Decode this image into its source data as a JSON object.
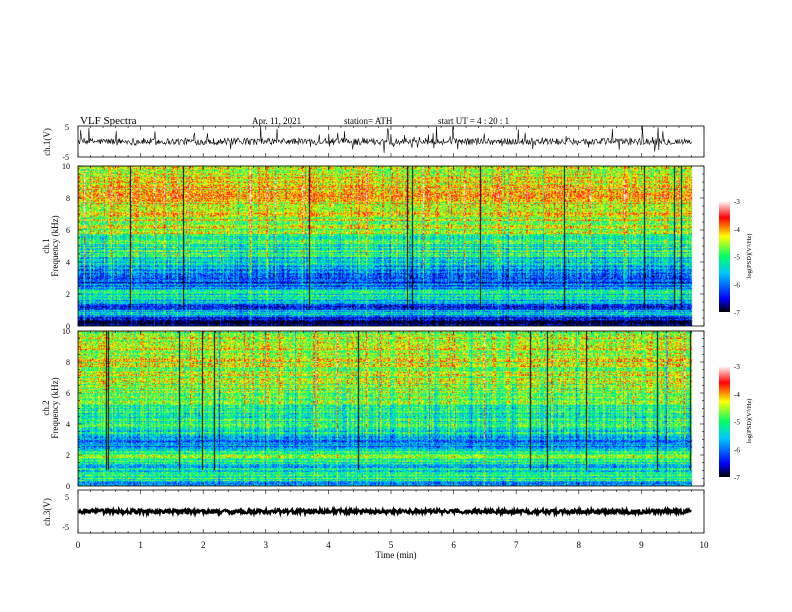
{
  "header": {
    "title": "VLF  Spectra",
    "date": "Apr. 11, 2021",
    "station": "station= ATH",
    "start": "start  UT  =   4  : 20 : 1"
  },
  "chart_data": [
    {
      "type": "line",
      "panel": "ch1-waveform",
      "ylabel": "ch.1(V)",
      "ylim": [
        -5,
        5
      ],
      "yticks": [
        "5",
        "-5"
      ],
      "xlim": [
        0,
        10
      ],
      "signal": {
        "baseline_v": 0.0,
        "noise_amplitude_v": 2.0,
        "spike_amplitude_v": 4.5,
        "duration_min": 9.8
      }
    },
    {
      "type": "heatmap",
      "panel": "ch1-spectrogram",
      "ylabel": "ch.1\nFrequency  (kHz)",
      "ylabel_lines": [
        "ch.1",
        "Frequency  (kHz)"
      ],
      "ylim": [
        0,
        10
      ],
      "yticks": [
        "0",
        "2",
        "4",
        "6",
        "8",
        "10"
      ],
      "xlim": [
        0,
        10
      ],
      "duration_min": 9.8,
      "colorbar": {
        "label": "log(PSD)(V²/Hz)",
        "range": [
          -7,
          -3
        ],
        "ticks": [
          "-3",
          "-4",
          "-5",
          "-6",
          "-7"
        ]
      },
      "profile_log_psd": [
        {
          "f_khz": 0.0,
          "v": -7.0
        },
        {
          "f_khz": 0.4,
          "v": -6.6
        },
        {
          "f_khz": 0.8,
          "v": -5.3
        },
        {
          "f_khz": 1.2,
          "v": -6.3
        },
        {
          "f_khz": 1.6,
          "v": -5.6
        },
        {
          "f_khz": 2.0,
          "v": -5.2
        },
        {
          "f_khz": 2.4,
          "v": -5.9
        },
        {
          "f_khz": 3.0,
          "v": -6.4
        },
        {
          "f_khz": 3.6,
          "v": -5.7
        },
        {
          "f_khz": 4.5,
          "v": -5.2
        },
        {
          "f_khz": 5.5,
          "v": -4.9
        },
        {
          "f_khz": 7.0,
          "v": -4.4
        },
        {
          "f_khz": 8.5,
          "v": -4.1
        },
        {
          "f_khz": 10.0,
          "v": -4.6
        }
      ]
    },
    {
      "type": "heatmap",
      "panel": "ch2-spectrogram",
      "ylabel": "ch.2\nFrequency  (kHz)",
      "ylabel_lines": [
        "ch.2",
        "Frequency  (kHz)"
      ],
      "ylim": [
        0,
        10
      ],
      "yticks": [
        "0",
        "2",
        "4",
        "6",
        "8",
        "10"
      ],
      "xlim": [
        0,
        10
      ],
      "duration_min": 9.8,
      "colorbar": {
        "label": "log(PSD)(V²/Hz)",
        "range": [
          -7,
          -3
        ],
        "ticks": [
          "-3",
          "-4",
          "-5",
          "-6",
          "-7"
        ]
      },
      "profile_log_psd": [
        {
          "f_khz": 0.0,
          "v": -6.0
        },
        {
          "f_khz": 0.4,
          "v": -5.0
        },
        {
          "f_khz": 0.8,
          "v": -5.3
        },
        {
          "f_khz": 1.2,
          "v": -5.4
        },
        {
          "f_khz": 1.6,
          "v": -5.1
        },
        {
          "f_khz": 2.0,
          "v": -4.6
        },
        {
          "f_khz": 2.4,
          "v": -5.8
        },
        {
          "f_khz": 2.8,
          "v": -6.1
        },
        {
          "f_khz": 3.4,
          "v": -5.4
        },
        {
          "f_khz": 4.5,
          "v": -5.1
        },
        {
          "f_khz": 5.5,
          "v": -4.9
        },
        {
          "f_khz": 7.0,
          "v": -4.6
        },
        {
          "f_khz": 8.5,
          "v": -4.4
        },
        {
          "f_khz": 10.0,
          "v": -4.7
        }
      ]
    },
    {
      "type": "line",
      "panel": "ch3-waveform",
      "ylabel": "ch.3(V)",
      "ylim": [
        -5,
        5
      ],
      "yticks": [
        "5",
        "-5"
      ],
      "xlim": [
        0,
        10
      ],
      "xlabel": "Time  (min)",
      "xticks": [
        "0",
        "1",
        "2",
        "3",
        "4",
        "5",
        "6",
        "7",
        "8",
        "9",
        "10"
      ],
      "signal": {
        "baseline_v": 0.0,
        "noise_amplitude_v": 0.5,
        "duration_min": 9.8
      }
    }
  ],
  "colors": {
    "colormap": [
      "#000000",
      "#0000ff",
      "#00c8ff",
      "#00ff64",
      "#ffff00",
      "#ff0000",
      "#ffffff"
    ],
    "axis": "#000000",
    "trace": "#000000"
  }
}
